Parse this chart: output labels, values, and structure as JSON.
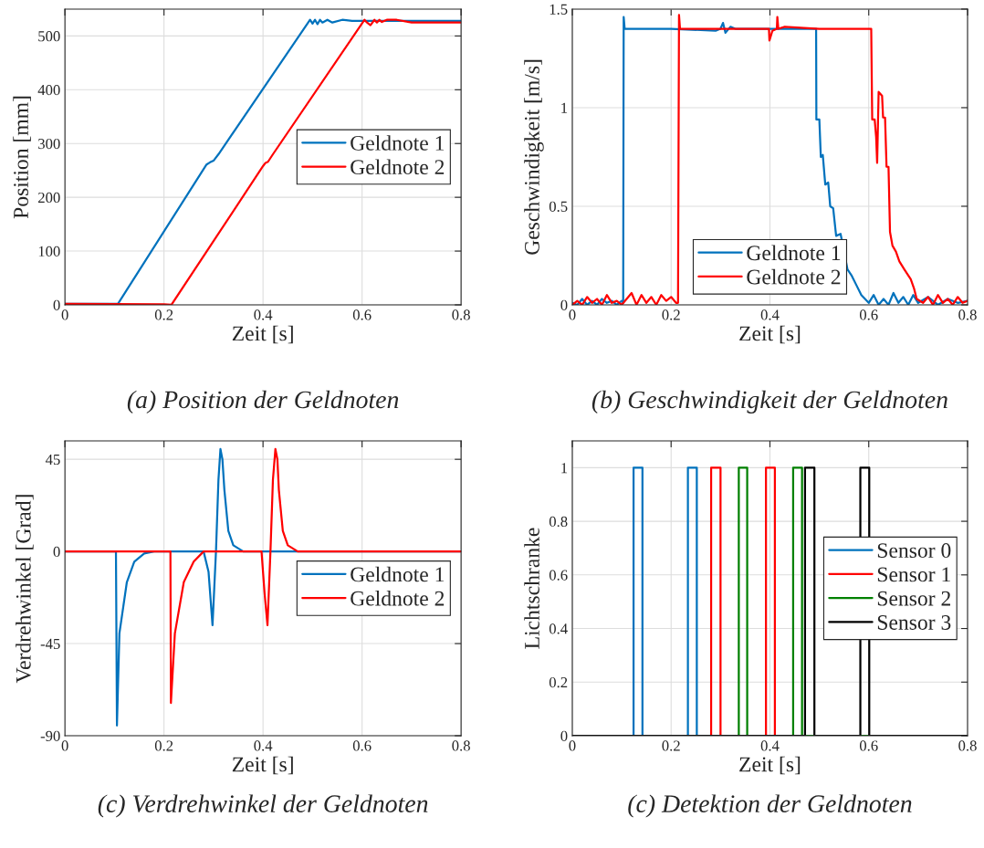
{
  "chart_data": [
    {
      "type": "line",
      "title": "(a) Position der Geldnoten",
      "xlabel": "Zeit [s]",
      "ylabel": "Position [mm]",
      "xlim": [
        0,
        0.8
      ],
      "xticks": [
        0,
        0.2,
        0.4,
        0.6,
        0.8
      ],
      "ylim": [
        0,
        550
      ],
      "yticks": [
        0,
        100,
        200,
        300,
        400,
        500
      ],
      "grid": true,
      "legend": "right",
      "series": [
        {
          "name": "Geldnote 1",
          "color": "#0072bd",
          "x": [
            0,
            0.107,
            0.286,
            0.293,
            0.3,
            0.31,
            0.495,
            0.5,
            0.505,
            0.51,
            0.515,
            0.52,
            0.53,
            0.54,
            0.56,
            0.58,
            0.6,
            0.8
          ],
          "values": [
            2,
            2,
            261,
            265,
            268,
            280,
            530,
            523,
            530,
            522,
            530,
            525,
            530,
            525,
            530,
            528,
            528,
            528
          ]
        },
        {
          "name": "Geldnote 2",
          "color": "#ff0000",
          "x": [
            0,
            0.2,
            0.215,
            0.4,
            0.405,
            0.41,
            0.42,
            0.605,
            0.61,
            0.617,
            0.625,
            0.63,
            0.635,
            0.64,
            0.65,
            0.67,
            0.7,
            0.8
          ],
          "values": [
            2,
            1,
            0,
            258,
            264,
            266,
            280,
            530,
            525,
            520,
            530,
            525,
            530,
            526,
            530,
            530,
            525,
            525
          ]
        }
      ]
    },
    {
      "type": "line",
      "title": "(b) Geschwindigkeit der Geldnoten",
      "xlabel": "Zeit [s]",
      "ylabel": "Geschwindigkeit [m/s]",
      "xlim": [
        0,
        0.8
      ],
      "xticks": [
        0,
        0.2,
        0.4,
        0.6,
        0.8
      ],
      "ylim": [
        0,
        1.5
      ],
      "yticks": [
        0,
        0.5,
        1,
        1.5
      ],
      "grid": true,
      "legend": "bottom",
      "series": [
        {
          "name": "Geldnote 1",
          "color": "#0072bd",
          "x": [
            0,
            0.01,
            0.02,
            0.03,
            0.04,
            0.05,
            0.06,
            0.07,
            0.08,
            0.09,
            0.1,
            0.103,
            0.104,
            0.106,
            0.11,
            0.2,
            0.29,
            0.3,
            0.305,
            0.31,
            0.32,
            0.33,
            0.35,
            0.45,
            0.4935,
            0.494,
            0.5,
            0.503,
            0.507,
            0.512,
            0.518,
            0.522,
            0.528,
            0.534,
            0.543,
            0.557,
            0.565,
            0.575,
            0.585,
            0.6,
            0.61,
            0.62,
            0.63,
            0.64,
            0.65,
            0.66,
            0.67,
            0.68,
            0.69,
            0.7,
            0.72,
            0.74,
            0.76,
            0.78,
            0.8
          ],
          "values": [
            0.01,
            0.0,
            0.03,
            0.0,
            0.02,
            0.0,
            0.03,
            0.01,
            0.02,
            0.0,
            0.02,
            0.01,
            1.46,
            1.4,
            1.4,
            1.4,
            1.39,
            1.4,
            1.43,
            1.38,
            1.41,
            1.4,
            1.4,
            1.4,
            1.4,
            0.94,
            0.94,
            0.75,
            0.76,
            0.61,
            0.62,
            0.5,
            0.49,
            0.35,
            0.36,
            0.18,
            0.15,
            0.1,
            0.05,
            0.01,
            0.05,
            0.0,
            0.03,
            0.0,
            0.06,
            0.01,
            0.04,
            0.0,
            0.05,
            0.01,
            0.04,
            0.0,
            0.03,
            0.01,
            0.02
          ]
        },
        {
          "name": "Geldnote 2",
          "color": "#ff0000",
          "x": [
            0,
            0.01,
            0.02,
            0.03,
            0.04,
            0.05,
            0.06,
            0.07,
            0.08,
            0.09,
            0.1,
            0.12,
            0.13,
            0.14,
            0.15,
            0.16,
            0.17,
            0.18,
            0.19,
            0.2,
            0.21,
            0.214,
            0.216,
            0.218,
            0.222,
            0.3,
            0.398,
            0.399,
            0.405,
            0.414,
            0.415,
            0.417,
            0.43,
            0.5,
            0.605,
            0.607,
            0.612,
            0.615,
            0.617,
            0.62,
            0.627,
            0.629,
            0.633,
            0.636,
            0.64,
            0.643,
            0.648,
            0.655,
            0.662,
            0.672,
            0.685,
            0.692,
            0.697,
            0.71,
            0.72,
            0.73,
            0.74,
            0.75,
            0.76,
            0.77,
            0.78,
            0.79,
            0.8
          ],
          "values": [
            0.0,
            0.02,
            0.0,
            0.04,
            0.01,
            0.03,
            0.0,
            0.05,
            0.01,
            0.02,
            0.0,
            0.06,
            0.0,
            0.05,
            0.01,
            0.04,
            0.0,
            0.05,
            0.02,
            0.04,
            0.01,
            0.01,
            1.47,
            1.4,
            1.4,
            1.4,
            1.4,
            1.34,
            1.39,
            1.4,
            1.46,
            1.4,
            1.41,
            1.4,
            1.4,
            0.94,
            0.94,
            0.85,
            0.72,
            1.08,
            1.06,
            0.95,
            0.95,
            0.7,
            0.7,
            0.37,
            0.3,
            0.27,
            0.22,
            0.18,
            0.13,
            0.08,
            0.03,
            0.01,
            0.04,
            0.0,
            0.05,
            0.01,
            0.03,
            0.0,
            0.04,
            0.01,
            0.02
          ]
        }
      ]
    },
    {
      "type": "line",
      "title": "(c) Verdrehwinkel der Geldnoten",
      "xlabel": "Zeit [s]",
      "ylabel": "Verdrehwinkel [Grad]",
      "xlim": [
        0,
        0.8
      ],
      "xticks": [
        0,
        0.2,
        0.4,
        0.6,
        0.8
      ],
      "ylim": [
        -90,
        54
      ],
      "yticks": [
        -90,
        -45,
        0,
        45
      ],
      "grid": true,
      "legend": "right",
      "series": [
        {
          "name": "Geldnote 1",
          "color": "#0072bd",
          "x": [
            0,
            0.103,
            0.105,
            0.11,
            0.125,
            0.14,
            0.16,
            0.18,
            0.28,
            0.29,
            0.298,
            0.305,
            0.31,
            0.314,
            0.318,
            0.322,
            0.33,
            0.34,
            0.36,
            0.8
          ],
          "values": [
            0,
            0,
            -85,
            -40,
            -15,
            -5,
            -1,
            0,
            0,
            -10,
            -36,
            0,
            35,
            50,
            45,
            30,
            10,
            3,
            0,
            0
          ]
        },
        {
          "name": "Geldnote 2",
          "color": "#ff0000",
          "x": [
            0,
            0.213,
            0.214,
            0.222,
            0.24,
            0.26,
            0.28,
            0.397,
            0.403,
            0.409,
            0.415,
            0.42,
            0.425,
            0.429,
            0.432,
            0.44,
            0.45,
            0.47,
            0.8
          ],
          "values": [
            0,
            0,
            -74,
            -40,
            -15,
            -5,
            0,
            0,
            -20,
            -36,
            0,
            35,
            50,
            45,
            30,
            10,
            3,
            0,
            0
          ]
        }
      ]
    },
    {
      "type": "step",
      "title": "(c) Detektion der Geldnoten",
      "xlabel": "Zeit [s]",
      "ylabel": "Lichtschranke",
      "xlim": [
        0,
        0.8
      ],
      "xticks": [
        0,
        0.2,
        0.4,
        0.6,
        0.8
      ],
      "ylim": [
        0,
        1.1
      ],
      "yticks": [
        0,
        0.2,
        0.4,
        0.6,
        0.8,
        1
      ],
      "grid": true,
      "legend": "right",
      "series": [
        {
          "name": "Sensor 0",
          "color": "#0072bd",
          "x": [
            0,
            0.124,
            0.142,
            0.234,
            0.252,
            0.8
          ],
          "values": [
            0,
            1,
            0,
            1,
            0,
            0
          ]
        },
        {
          "name": "Sensor 1",
          "color": "#ff0000",
          "x": [
            0,
            0.281,
            0.3,
            0.392,
            0.41,
            0.8
          ],
          "values": [
            0,
            1,
            0,
            1,
            0,
            0
          ]
        },
        {
          "name": "Sensor 2",
          "color": "#008000",
          "x": [
            0,
            0.337,
            0.354,
            0.447,
            0.465,
            0.8
          ],
          "values": [
            0,
            1,
            0,
            1,
            0,
            0
          ]
        },
        {
          "name": "Sensor 3",
          "color": "#000000",
          "x": [
            0,
            0.471,
            0.49,
            0.583,
            0.601,
            0.8
          ],
          "values": [
            0,
            1,
            0,
            1,
            0,
            0
          ]
        }
      ]
    }
  ]
}
